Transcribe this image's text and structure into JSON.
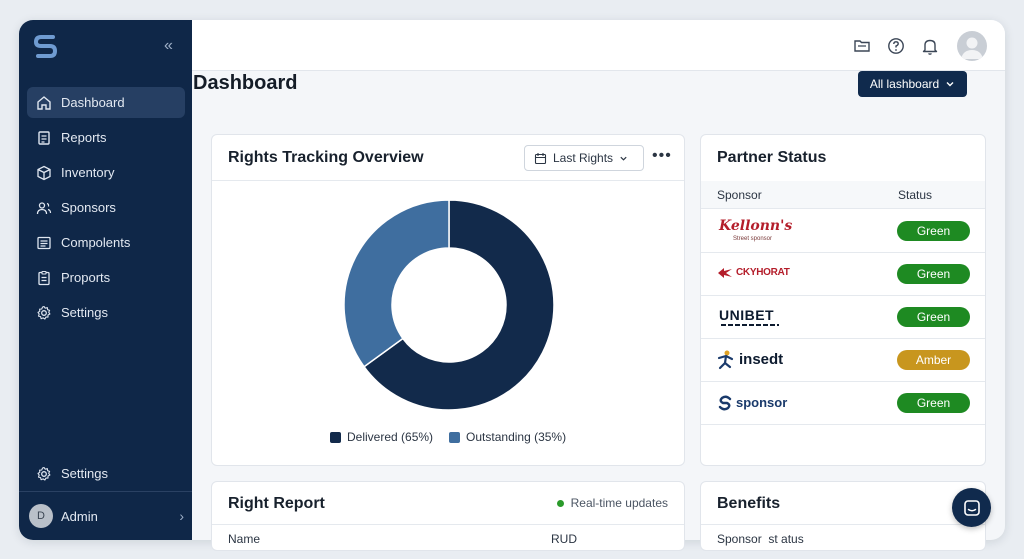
{
  "sidebar": {
    "items": [
      {
        "label": "Dashboard",
        "icon": "home-icon"
      },
      {
        "label": "Reports",
        "icon": "document-icon"
      },
      {
        "label": "Inventory",
        "icon": "box-icon"
      },
      {
        "label": "Sponsors",
        "icon": "users-icon"
      },
      {
        "label": "Compolents",
        "icon": "list-icon"
      },
      {
        "label": "Proports",
        "icon": "clipboard-icon"
      },
      {
        "label": "Settings",
        "icon": "gear-icon"
      }
    ],
    "bottom_settings": "Settings",
    "admin": {
      "initial": "D",
      "label": "Admin"
    }
  },
  "header": {
    "icons": [
      "folder-icon",
      "help-icon",
      "bell-icon",
      "user-avatar"
    ]
  },
  "main": {
    "title": "Dashboard",
    "filter_button": "All lashboard"
  },
  "rights_card": {
    "title": "Rights Tracking Overview",
    "period": "Last Rights",
    "legend": [
      {
        "label": "Delivered (65%)",
        "color": "#122a4b"
      },
      {
        "label": "Outstanding (35%)",
        "color": "#3f6e9f"
      }
    ]
  },
  "chart_data": {
    "type": "pie",
    "categories": [
      "Delivered",
      "Outstanding"
    ],
    "values": [
      65,
      35
    ],
    "colors": [
      "#122a4b",
      "#3f6e9f"
    ],
    "title": "Rights Tracking Overview",
    "legend": "bottom"
  },
  "partner_card": {
    "title": "Partner Status",
    "columns": [
      "Sponsor",
      "Status"
    ],
    "rows": [
      {
        "sponsor": "Kellonn's",
        "tagline": "Street sponsor",
        "status": "Green",
        "color": "#1e8a22"
      },
      {
        "sponsor": "CKYHORAT",
        "status": "Green",
        "color": "#1e8a22"
      },
      {
        "sponsor": "UNIBET",
        "status": "Green",
        "color": "#1e8a22"
      },
      {
        "sponsor": "insedt",
        "status": "Amber",
        "color": "#c8961e"
      },
      {
        "sponsor": "sponsor",
        "status": "Green",
        "color": "#1e8a22"
      }
    ]
  },
  "report_card": {
    "title": "Right Report",
    "realtime": "Real-time updates",
    "columns": [
      "Name",
      "RUD"
    ]
  },
  "benefits_card": {
    "title": "Benefits",
    "column": "Sponsor  st atus"
  }
}
